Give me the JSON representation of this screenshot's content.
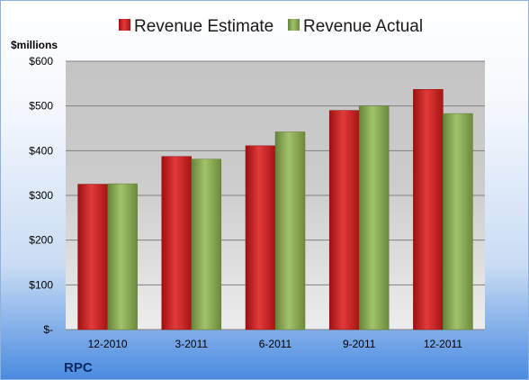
{
  "chart_data": {
    "type": "bar",
    "categories": [
      "12-2010",
      "3-2011",
      "6-2011",
      "9-2011",
      "12-2011"
    ],
    "series": [
      {
        "name": "Revenue Estimate",
        "values": [
          325,
          387,
          411,
          490,
          537
        ],
        "color": "#c81e1e"
      },
      {
        "name": "Revenue Actual",
        "values": [
          326,
          381,
          442,
          500,
          483
        ],
        "color": "#86a84a"
      }
    ],
    "ylabel": "$millions",
    "ylim": [
      0,
      600
    ],
    "yticks": [
      0,
      100,
      200,
      300,
      400,
      500,
      600
    ],
    "ytick_labels": [
      "$-",
      "$100",
      "$200",
      "$300",
      "$400",
      "$500",
      "$600"
    ],
    "grid": true,
    "legend": "top"
  },
  "footer": {
    "company": "RPC"
  }
}
